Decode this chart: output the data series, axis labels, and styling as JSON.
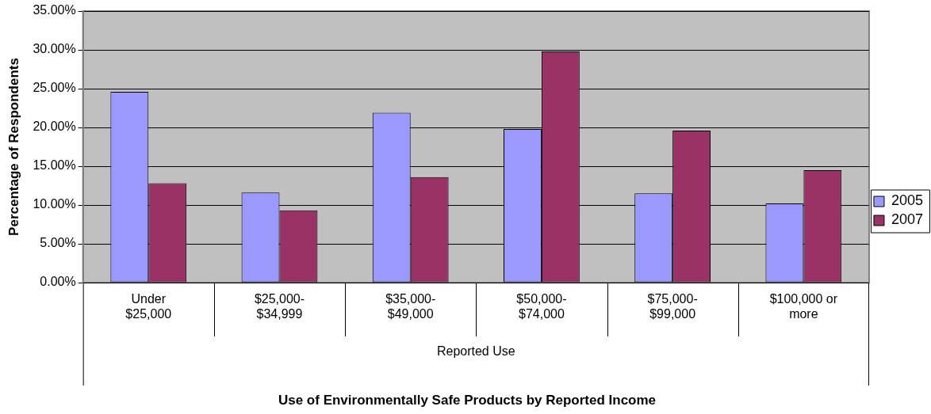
{
  "chart_data": {
    "type": "bar",
    "title": "Use of Environmentally Safe Products by Reported Income",
    "xlabel": "Reported Use",
    "ylabel": "Percentage of Respondents",
    "categories": [
      "Under $25,000",
      "$25,000-$34,999",
      "$35,000-$49,000",
      "$50,000-$74,000",
      "$75,000-$99,000",
      "$100,000 or more"
    ],
    "series": [
      {
        "name": "2005",
        "color": "#9999ff",
        "values": [
          24.6,
          11.6,
          21.9,
          19.8,
          11.5,
          10.2
        ]
      },
      {
        "name": "2007",
        "color": "#993366",
        "values": [
          12.8,
          9.3,
          13.6,
          29.8,
          19.6,
          14.5
        ]
      }
    ],
    "ylim": [
      0,
      35
    ],
    "yticks": [
      {
        "value": 0,
        "label": "0.00%"
      },
      {
        "value": 5,
        "label": "5.00%"
      },
      {
        "value": 10,
        "label": "10.00%"
      },
      {
        "value": 15,
        "label": "15.00%"
      },
      {
        "value": 20,
        "label": "20.00%"
      },
      {
        "value": 25,
        "label": "25.00%"
      },
      {
        "value": 30,
        "label": "30.00%"
      },
      {
        "value": 35,
        "label": "35.00%"
      }
    ],
    "grid": "y",
    "legend": "right"
  }
}
